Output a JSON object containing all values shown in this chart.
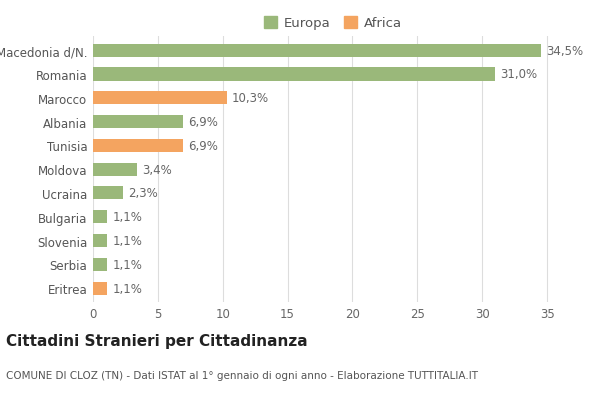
{
  "categories": [
    "Eritrea",
    "Serbia",
    "Slovenia",
    "Bulgaria",
    "Ucraina",
    "Moldova",
    "Tunisia",
    "Albania",
    "Marocco",
    "Romania",
    "Macedonia d/N."
  ],
  "values": [
    1.1,
    1.1,
    1.1,
    1.1,
    2.3,
    3.4,
    6.9,
    6.9,
    10.3,
    31.0,
    34.5
  ],
  "labels": [
    "1,1%",
    "1,1%",
    "1,1%",
    "1,1%",
    "2,3%",
    "3,4%",
    "6,9%",
    "6,9%",
    "10,3%",
    "31,0%",
    "34,5%"
  ],
  "colors": [
    "#f4a460",
    "#9ab87a",
    "#9ab87a",
    "#9ab87a",
    "#9ab87a",
    "#9ab87a",
    "#f4a460",
    "#9ab87a",
    "#f4a460",
    "#9ab87a",
    "#9ab87a"
  ],
  "europa_color": "#9ab87a",
  "africa_color": "#f4a460",
  "xlim": [
    0,
    37
  ],
  "xticks": [
    0,
    5,
    10,
    15,
    20,
    25,
    30,
    35
  ],
  "title": "Cittadini Stranieri per Cittadinanza",
  "subtitle": "COMUNE DI CLOZ (TN) - Dati ISTAT al 1° gennaio di ogni anno - Elaborazione TUTTITALIA.IT",
  "background_color": "#ffffff",
  "grid_color": "#dddddd",
  "bar_height": 0.55,
  "label_fontsize": 8.5,
  "tick_fontsize": 8.5,
  "title_fontsize": 11,
  "subtitle_fontsize": 7.5
}
